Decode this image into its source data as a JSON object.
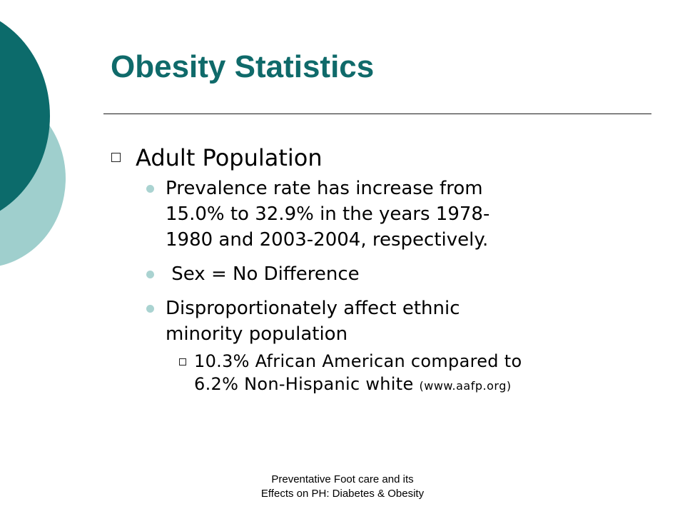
{
  "slide": {
    "title": "Obesity Statistics",
    "bullets": [
      {
        "text": "Adult Population",
        "sub": [
          {
            "text_lines": [
              "Prevalence rate has increase from",
              "15.0% to 32.9% in the years 1978-",
              "1980 and 2003-2004, respectively."
            ]
          },
          {
            "text_lines": [
              " Sex = No Difference"
            ]
          },
          {
            "text_lines": [
              "Disproportionately affect ethnic",
              "minority population"
            ],
            "sub": [
              {
                "line1": "10.3% African American compared to",
                "line2": "6.2% Non-Hispanic white",
                "source": "(www.aafp.org)"
              }
            ]
          }
        ]
      }
    ],
    "footer_lines": [
      "Preventative Foot care and its",
      "Effects on PH: Diabetes & Obesity"
    ]
  },
  "colors": {
    "title": "#0f6a6a",
    "decor_dark": "#0c6b6b",
    "decor_light": "#9fcfcd",
    "bullet_dot": "#aad3d1"
  }
}
